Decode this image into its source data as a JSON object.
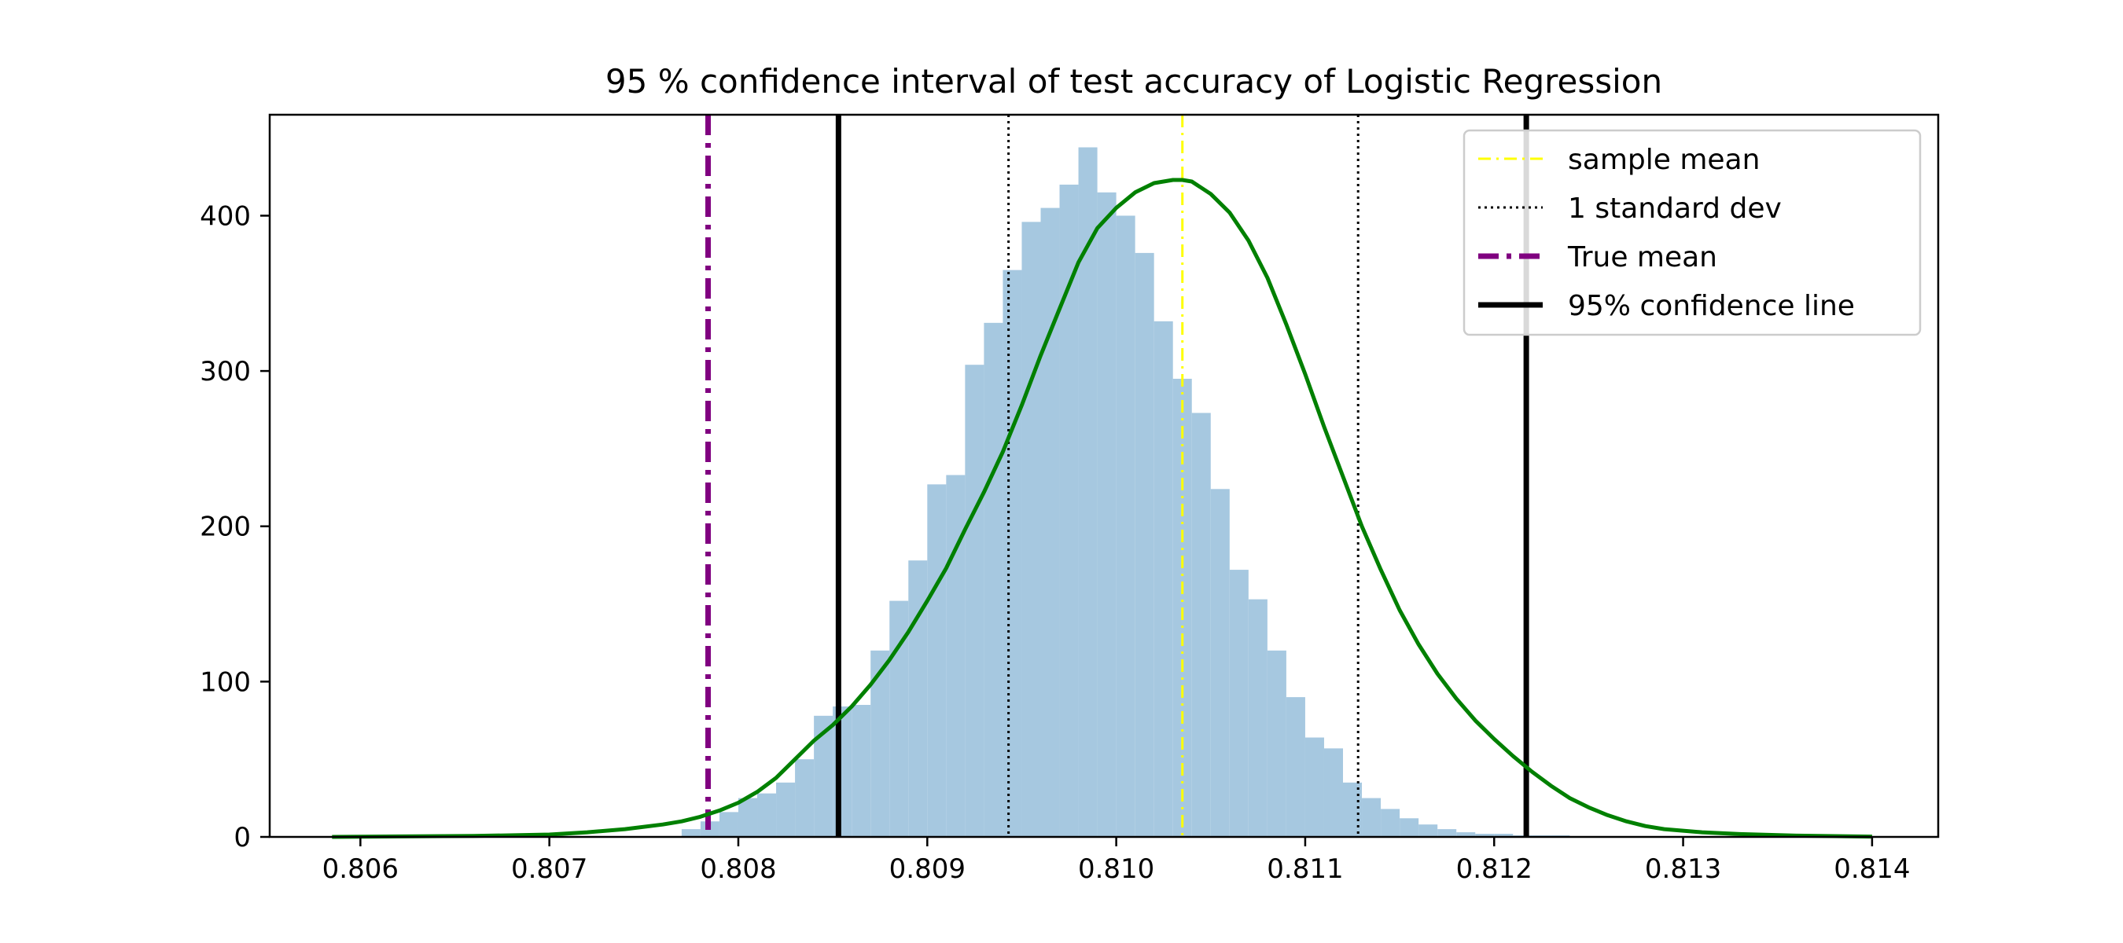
{
  "chart_data": {
    "type": "bar",
    "title": "95 % confidence interval of test accuracy of Logistic Regression",
    "xlabel": "",
    "ylabel": "",
    "xlim": [
      0.80552,
      0.81435
    ],
    "ylim": [
      0,
      465
    ],
    "x_ticks": [
      {
        "value": 0.806,
        "label": "0.806"
      },
      {
        "value": 0.807,
        "label": "0.807"
      },
      {
        "value": 0.808,
        "label": "0.808"
      },
      {
        "value": 0.809,
        "label": "0.809"
      },
      {
        "value": 0.81,
        "label": "0.810"
      },
      {
        "value": 0.811,
        "label": "0.811"
      },
      {
        "value": 0.812,
        "label": "0.812"
      },
      {
        "value": 0.813,
        "label": "0.813"
      },
      {
        "value": 0.814,
        "label": "0.814"
      }
    ],
    "y_ticks": [
      {
        "value": 0,
        "label": "0"
      },
      {
        "value": 100,
        "label": "100"
      },
      {
        "value": 200,
        "label": "200"
      },
      {
        "value": 300,
        "label": "300"
      },
      {
        "value": 400,
        "label": "400"
      }
    ],
    "grid": false,
    "histogram": {
      "color": "#a6c8e0",
      "bin_width": 0.0001,
      "bin_starts": [
        0.8077,
        0.8078,
        0.8079,
        0.808,
        0.8081,
        0.8082,
        0.8083,
        0.8084,
        0.8085,
        0.8086,
        0.8087,
        0.8088,
        0.8089,
        0.809,
        0.8091,
        0.8092,
        0.8093,
        0.8094,
        0.8095,
        0.8096,
        0.8097,
        0.8098,
        0.8099,
        0.81,
        0.8101,
        0.8102,
        0.8103,
        0.8104,
        0.8105,
        0.8106,
        0.8107,
        0.8108,
        0.8109,
        0.811,
        0.8111,
        0.8112,
        0.8113,
        0.8114,
        0.8115,
        0.8116,
        0.8117,
        0.8118,
        0.8119,
        0.812,
        0.8121,
        0.8122,
        0.8123,
        0.8124,
        0.8125,
        0.8126,
        0.8127,
        0.8128,
        0.8129
      ],
      "counts": [
        5,
        10,
        16,
        25,
        28,
        35,
        50,
        78,
        84,
        85,
        120,
        152,
        178,
        227,
        233,
        304,
        331,
        365,
        396,
        405,
        420,
        444,
        415,
        400,
        376,
        332,
        295,
        273,
        224,
        172,
        153,
        120,
        90,
        64,
        57,
        35,
        25,
        18,
        12,
        8,
        5,
        3,
        2,
        2,
        1,
        1,
        1,
        0,
        0,
        0,
        0,
        0,
        0
      ]
    },
    "kde": {
      "color": "#008000",
      "x": [
        0.80585,
        0.8062,
        0.8066,
        0.807,
        0.8072,
        0.8074,
        0.8076,
        0.8077,
        0.8078,
        0.8079,
        0.808,
        0.8081,
        0.8082,
        0.8083,
        0.8084,
        0.8085,
        0.8086,
        0.8087,
        0.8088,
        0.8089,
        0.809,
        0.8091,
        0.8092,
        0.8093,
        0.8094,
        0.8095,
        0.8096,
        0.8097,
        0.8098,
        0.8099,
        0.81,
        0.8101,
        0.8102,
        0.8103,
        0.81035,
        0.8104,
        0.8105,
        0.8106,
        0.8107,
        0.8108,
        0.8109,
        0.811,
        0.8111,
        0.8112,
        0.8113,
        0.8114,
        0.8115,
        0.8116,
        0.8117,
        0.8118,
        0.8119,
        0.812,
        0.8121,
        0.8122,
        0.8123,
        0.8124,
        0.8125,
        0.8126,
        0.8127,
        0.8128,
        0.8129,
        0.8131,
        0.8133,
        0.8136,
        0.814
      ],
      "y": [
        0,
        0.3,
        0.6,
        1.5,
        3,
        5,
        8,
        10,
        13,
        17,
        22,
        29,
        38,
        50,
        62,
        72,
        84,
        98,
        114,
        132,
        152,
        173,
        198,
        222,
        248,
        278,
        310,
        340,
        370,
        392,
        405,
        415,
        421,
        423,
        423,
        422,
        414,
        402,
        384,
        360,
        330,
        298,
        264,
        232,
        200,
        172,
        146,
        124,
        105,
        89,
        75,
        63,
        52,
        42,
        33,
        25,
        19,
        14,
        10,
        7,
        5,
        3,
        1.8,
        0.8,
        0.2
      ]
    },
    "series": [
      {
        "name": "sample mean",
        "x": 0.81035,
        "color": "#ffff00",
        "style": "dashdot"
      },
      {
        "name": "1 standard dev",
        "x": [
          0.80943,
          0.81128
        ],
        "color": "#000000",
        "style": "dotted"
      },
      {
        "name": "True mean",
        "x": 0.80784,
        "color": "#800080",
        "style": "dashdot"
      },
      {
        "name": "95% confidence line",
        "x": [
          0.80853,
          0.81217
        ],
        "color": "#000000",
        "style": "solid"
      }
    ],
    "legend": {
      "placement": "top-right"
    }
  }
}
